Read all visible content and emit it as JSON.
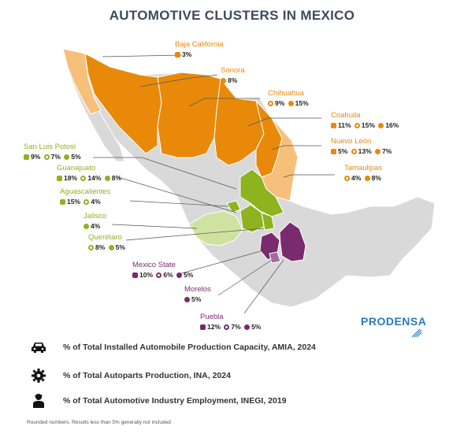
{
  "title": "AUTOMOTIVE CLUSTERS IN MEXICO",
  "colors": {
    "orange": "#e8890a",
    "light_orange": "#f7c07a",
    "green": "#8db31f",
    "light_green": "#cfe3a0",
    "purple": "#7a2a6e",
    "land": "#d9d9d9"
  },
  "states": {
    "baja_california": {
      "name": "Baja California",
      "vals": [
        "3%"
      ]
    },
    "sonora": {
      "name": "Sonora",
      "vals": [
        "8%"
      ]
    },
    "chihuahua": {
      "name": "Chihuahua",
      "vals": [
        "9%",
        "15%"
      ]
    },
    "coahuila": {
      "name": "Coahuila",
      "vals": [
        "11%",
        "15%",
        "16%"
      ]
    },
    "nuevo_leon": {
      "name": "Nuevo León",
      "vals": [
        "5%",
        "13%",
        "7%"
      ]
    },
    "tamaulipas": {
      "name": "Tamaulipas",
      "vals": [
        "4%",
        "8%"
      ]
    },
    "san_luis_potosi": {
      "name": "San Luis Potosi",
      "vals": [
        "9%",
        "7%",
        "5%"
      ]
    },
    "guanajuato": {
      "name": "Guanajuato",
      "vals": [
        "18%",
        "14%",
        "8%"
      ]
    },
    "aguascalientes": {
      "name": "Aguascalientes",
      "vals": [
        "15%",
        "4%"
      ]
    },
    "jalisco": {
      "name": "Jalisco",
      "vals": [
        "4%"
      ]
    },
    "queretaro": {
      "name": "Querétaro",
      "vals": [
        "8%",
        "5%"
      ]
    },
    "mexico_state": {
      "name": "Mexico State",
      "vals": [
        "10%",
        "6%",
        "5%"
      ]
    },
    "morelos": {
      "name": "Morelos",
      "vals": [
        "5%"
      ]
    },
    "puebla": {
      "name": "Puebla",
      "vals": [
        "12%",
        "7%",
        "5%"
      ]
    }
  },
  "legend": [
    {
      "icon": "car-icon",
      "text": "% of Total Installed Automobile Production Capacity, AMIA, 2024"
    },
    {
      "icon": "gear-icon",
      "text": "% of Total Autoparts Production, INA, 2024"
    },
    {
      "icon": "worker-icon",
      "text": "% of Total Automotive Industry Employment, INEGI, 2019"
    }
  ],
  "logo": "PRODENSA",
  "footnote": "Rounded numbers. Results less than 5% generally not included"
}
